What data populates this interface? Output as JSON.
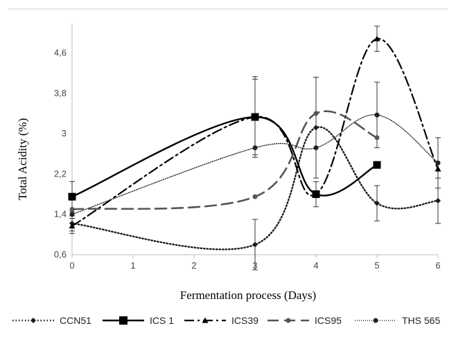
{
  "chart_data": {
    "type": "line",
    "xlabel": "Fermentation process (Days)",
    "ylabel": "Total Acidity (%)",
    "xlim": [
      0,
      6
    ],
    "ylim": [
      0.6,
      5.1
    ],
    "x_ticks": [
      "0",
      "1",
      "2",
      "3",
      "4",
      "5",
      "6"
    ],
    "y_ticks": [
      "0,6",
      "1,4",
      "2,2",
      "3",
      "3,8",
      "4,6"
    ],
    "grid": false,
    "legend_position": "bottom",
    "series": [
      {
        "name": "CCN51",
        "line_style": "dotted",
        "marker": "diamond",
        "color": "#1a1a1a",
        "x": [
          0,
          3,
          4,
          5,
          6
        ],
        "y": [
          1.22,
          0.8,
          3.12,
          1.62,
          1.67
        ],
        "err": [
          0.15,
          0.5,
          1.0,
          0.35,
          0.45
        ]
      },
      {
        "name": "ICS 1",
        "line_style": "solid",
        "marker": "square",
        "color": "#000000",
        "x": [
          0,
          3,
          4,
          5
        ],
        "y": [
          1.75,
          3.33,
          1.8,
          2.38
        ],
        "err": [
          0.3,
          0.8,
          0.25,
          0.0
        ]
      },
      {
        "name": "ICS39",
        "line_style": "dash-dot",
        "marker": "triangle",
        "color": "#000000",
        "x": [
          0,
          3,
          4,
          5,
          6
        ],
        "y": [
          1.17,
          3.33,
          1.8,
          4.88,
          2.3
        ],
        "err": [
          0.15,
          0.75,
          0.0,
          0.25,
          0.0
        ]
      },
      {
        "name": "ICS95",
        "line_style": "long-dash",
        "marker": "circle",
        "color": "#555555",
        "x": [
          0,
          3,
          4,
          5
        ],
        "y": [
          1.5,
          1.75,
          3.4,
          2.92
        ],
        "err": [
          0.0,
          0.0,
          0.0,
          0.0
        ]
      },
      {
        "name": "THS 565",
        "line_style": "fine-dotted",
        "marker": "circle",
        "color": "#222222",
        "x": [
          0,
          3,
          4,
          5,
          6
        ],
        "y": [
          1.4,
          2.72,
          2.72,
          3.37,
          2.42
        ],
        "err": [
          0.0,
          0.0,
          0.0,
          0.65,
          0.5
        ]
      }
    ]
  }
}
